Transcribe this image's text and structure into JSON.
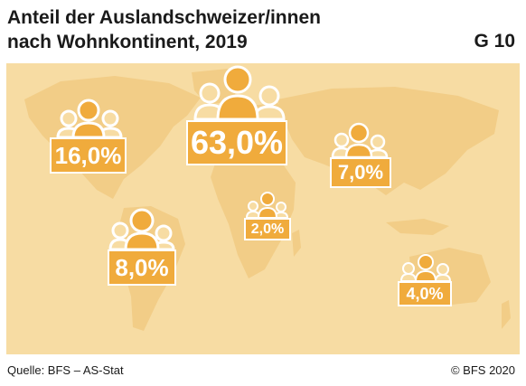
{
  "header": {
    "title_line1": "Anteil der Auslandschweizer/innen",
    "title_line2": "nach Wohnkontinent, 2019",
    "graphic_number": "G 10"
  },
  "footer": {
    "source": "Quelle: BFS – AS-Stat",
    "copyright": "© BFS 2020"
  },
  "colors": {
    "background_panel": "#f7dca3",
    "continents": "#f2cd87",
    "accent": "#f0ab3c",
    "person_outline": "#ffffff"
  },
  "chart_data": {
    "type": "table",
    "title": "Anteil der Auslandschweizer/innen nach Wohnkontinent, 2019",
    "unit": "%",
    "labels": [
      "16,0%",
      "63,0%",
      "7,0%",
      "2,0%",
      "8,0%",
      "4,0%"
    ],
    "values": [
      16.0,
      63.0,
      7.0,
      2.0,
      8.0,
      4.0
    ]
  }
}
